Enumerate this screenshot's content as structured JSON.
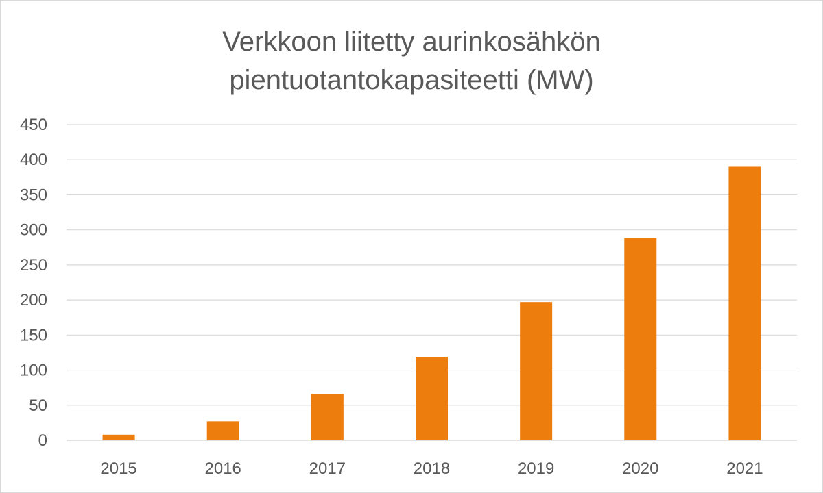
{
  "chart_data": {
    "type": "bar",
    "title_lines": [
      "Verkkoon liitetty aurinkosähkön",
      "pientuotantokapasiteetti (MW)"
    ],
    "categories": [
      "2015",
      "2016",
      "2017",
      "2018",
      "2019",
      "2020",
      "2021"
    ],
    "series": [
      {
        "values": [
          8,
          27,
          66,
          119,
          197,
          288,
          390
        ]
      }
    ],
    "xlabel": "",
    "ylabel": "",
    "ylim": [
      0,
      450
    ],
    "yticks": [
      0,
      50,
      100,
      150,
      200,
      250,
      300,
      350,
      400,
      450
    ],
    "grid": true,
    "legend": "none",
    "bar_color": "#ED7D0D",
    "grid_color": "#d9d9d9",
    "text_color": "#595959"
  }
}
